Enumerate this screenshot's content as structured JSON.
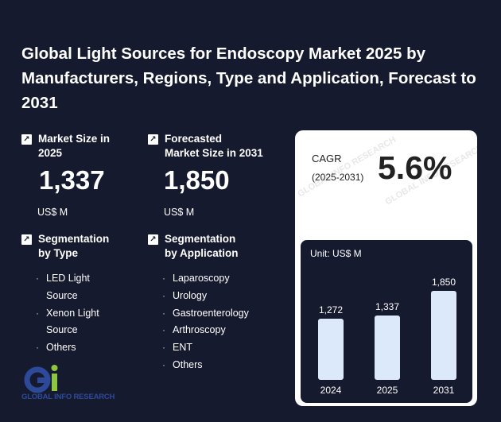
{
  "title": "Global Light Sources for Endoscopy Market 2025 by Manufacturers, Regions, Type and Application, Forecast to 2031",
  "stats": {
    "market_size": {
      "label_line1": "Market Size in",
      "label_line2": "2025",
      "value": "1,337",
      "unit": "US$ M"
    },
    "forecast": {
      "label_line1": "Forecasted",
      "label_line2": "Market Size in 2031",
      "value": "1,850",
      "unit": "US$ M"
    }
  },
  "segmentation_type": {
    "label_line1": "Segmentation",
    "label_line2": "by Type",
    "items": [
      "LED Light Source",
      "Xenon Light Source",
      "Others"
    ]
  },
  "segmentation_application": {
    "label_line1": "Segmentation",
    "label_line2": "by Application",
    "items": [
      "Laparoscopy",
      "Urology",
      "Gastroenterology",
      "Arthroscopy",
      "ENT",
      "Others"
    ]
  },
  "cagr": {
    "label": "CAGR",
    "period": "(2025-2031)",
    "value": "5.6%"
  },
  "logo": {
    "text": "GLOBAL INFO RESEARCH",
    "watermark": "GLOBAL INFO RESEARCH"
  },
  "colors": {
    "background": "#161a2e",
    "bar": "#dbe9fb",
    "logo_blue": "#2d4a9a",
    "logo_green": "#8dc63f"
  },
  "chart_data": {
    "type": "bar",
    "unit_label": "Unit: US$ M",
    "categories": [
      "2024",
      "2025",
      "2031"
    ],
    "values": [
      1272,
      1337,
      1850
    ],
    "value_labels": [
      "1,272",
      "1,337",
      "1,850"
    ],
    "ylim": [
      0,
      2000
    ],
    "grid": false,
    "legend": "none"
  }
}
